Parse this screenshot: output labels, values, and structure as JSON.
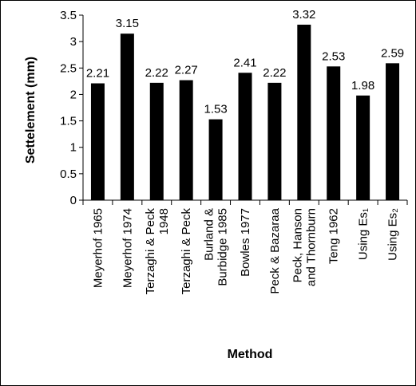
{
  "chart_data": {
    "type": "bar",
    "ylabel": "Settelement (mm)",
    "xlabel": "Method",
    "ylim": [
      0,
      3.5
    ],
    "y_ticks": [
      "0",
      "0.5",
      "1",
      "1.5",
      "2",
      "2.5",
      "3",
      "3.5"
    ],
    "categories": [
      [
        "Meyerhof 1965"
      ],
      [
        "Meyerhof 1974"
      ],
      [
        "Terzaghi & Peck",
        "1948"
      ],
      [
        "Terzaghi & Peck"
      ],
      [
        "Burland &",
        "Burbidge 1985"
      ],
      [
        "Bowles 1977"
      ],
      [
        "Peck & Bazaraa"
      ],
      [
        "Peck, Hanson",
        "and Thornburn"
      ],
      [
        "Teng 1962"
      ],
      [
        "Using Es₁"
      ],
      [
        "Using Es₂"
      ]
    ],
    "values": [
      2.21,
      3.15,
      2.22,
      2.27,
      1.53,
      2.41,
      2.22,
      3.32,
      2.53,
      1.98,
      2.59
    ],
    "data_labels": [
      "2.21",
      "3.15",
      "2.22",
      "2.27",
      "1.53",
      "2.41",
      "2.22",
      "3.32",
      "2.53",
      "1.98",
      "2.59"
    ],
    "bar_color": "#000000",
    "grid": false,
    "legend": "none"
  }
}
